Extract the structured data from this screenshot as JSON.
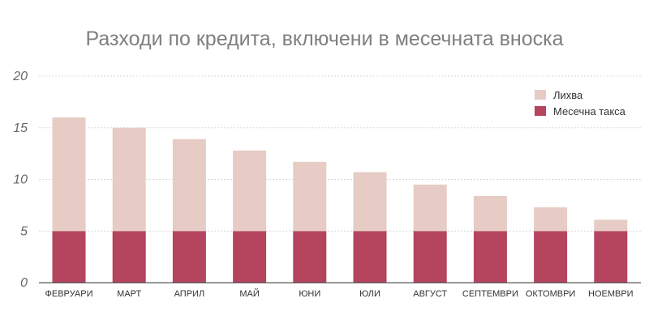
{
  "chart_data": {
    "type": "bar",
    "stacked": true,
    "title": "Разходи по кредита, включени в месечната вноска",
    "categories": [
      "ФЕВРУАРИ",
      "МАРТ",
      "АПРИЛ",
      "МАЙ",
      "ЮНИ",
      "ЮЛИ",
      "АВГУСТ",
      "СЕПТЕМВРИ",
      "ОКТОМВРИ",
      "НОЕМВРИ"
    ],
    "series": [
      {
        "name": "Месечна такса",
        "color": "#b5445f",
        "values": [
          5,
          5,
          5,
          5,
          5,
          5,
          5,
          5,
          5,
          5
        ]
      },
      {
        "name": "Лихва",
        "color": "#e6ccc4",
        "values": [
          11,
          10,
          8.9,
          7.8,
          6.7,
          5.7,
          4.5,
          3.4,
          2.3,
          1.1
        ]
      }
    ],
    "ylim": [
      0,
      20
    ],
    "yticks": [
      "0",
      "5",
      "10",
      "15",
      "20"
    ],
    "grid": true,
    "legend_position": "top-right",
    "legend_order": [
      "Лихва",
      "Месечна такса"
    ]
  }
}
